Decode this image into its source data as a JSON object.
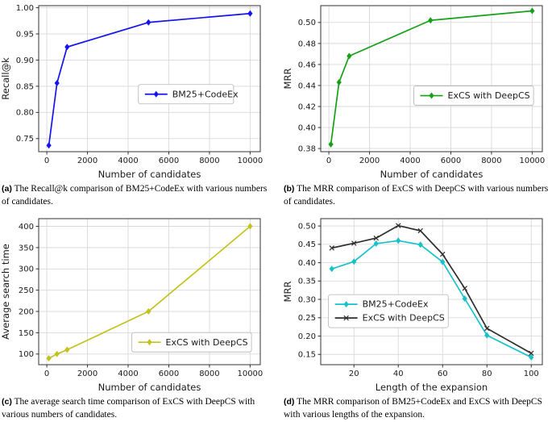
{
  "theme": {
    "background": "#ffffff",
    "grid_color": "#d9d9d9",
    "frame_color": "#333333",
    "text_color": "#1a1a1a",
    "legend_border_color": "#b3b3b3",
    "series_colors": {
      "blue": "#1414f0",
      "green": "#15a015",
      "yellow": "#c2c21d",
      "cyan": "#18c2c9",
      "black": "#2e2e2e"
    }
  },
  "chart_data": [
    {
      "name": "recall-vs-candidates",
      "type": "line",
      "title": "",
      "xlabel": "Number of candidates",
      "ylabel": "Recall@k",
      "xlim": [
        -400,
        10500
      ],
      "ylim": [
        0.725,
        1.004
      ],
      "grid": true,
      "xticks": [
        0,
        2000,
        4000,
        6000,
        8000,
        10000
      ],
      "xtick_labels": [
        "0",
        "2000",
        "4000",
        "6000",
        "8000",
        "10000"
      ],
      "yticks": [
        0.75,
        0.8,
        0.85,
        0.9,
        0.95,
        1.0
      ],
      "ytick_labels": [
        "0.75",
        "0.80",
        "0.85",
        "0.90",
        "0.95",
        "1.00"
      ],
      "legend_position": {
        "fx": 0.45,
        "fy": 0.54
      },
      "series": [
        {
          "name": "BM25+CodeEx",
          "color": "#1414f0",
          "marker": "diamond",
          "x": [
            100,
            500,
            1000,
            5000,
            10000
          ],
          "y": [
            0.737,
            0.856,
            0.925,
            0.972,
            0.989
          ]
        }
      ]
    },
    {
      "name": "mrr-vs-candidates",
      "type": "line",
      "title": "",
      "xlabel": "Number of candidates",
      "ylabel": "MRR",
      "xlim": [
        -400,
        10500
      ],
      "ylim": [
        0.377,
        0.516
      ],
      "grid": true,
      "xticks": [
        0,
        2000,
        4000,
        6000,
        8000,
        10000
      ],
      "xtick_labels": [
        "0",
        "2000",
        "4000",
        "6000",
        "8000",
        "10000"
      ],
      "yticks": [
        0.38,
        0.4,
        0.42,
        0.44,
        0.46,
        0.48,
        0.5
      ],
      "ytick_labels": [
        "0.38",
        "0.40",
        "0.42",
        "0.44",
        "0.46",
        "0.48",
        "0.50"
      ],
      "legend_position": {
        "fx": 0.42,
        "fy": 0.55
      },
      "series": [
        {
          "name": "ExCS with DeepCS",
          "color": "#15a015",
          "marker": "diamond",
          "x": [
            100,
            500,
            1000,
            5000,
            10000
          ],
          "y": [
            0.384,
            0.443,
            0.468,
            0.502,
            0.511
          ]
        }
      ]
    },
    {
      "name": "search-time-vs-candidates",
      "type": "line",
      "title": "",
      "xlabel": "Number of candidates",
      "ylabel": "Average search time",
      "xlim": [
        -400,
        10500
      ],
      "ylim": [
        75,
        418
      ],
      "grid": true,
      "xticks": [
        0,
        2000,
        4000,
        6000,
        8000,
        10000
      ],
      "xtick_labels": [
        "0",
        "2000",
        "4000",
        "6000",
        "8000",
        "10000"
      ],
      "yticks": [
        100,
        150,
        200,
        250,
        300,
        350,
        400
      ],
      "ytick_labels": [
        "100",
        "150",
        "200",
        "250",
        "300",
        "350",
        "400"
      ],
      "legend_position": {
        "fx": 0.42,
        "fy": 0.78
      },
      "series": [
        {
          "name": "ExCS with DeepCS",
          "color": "#c2c21d",
          "marker": "diamond",
          "x": [
            100,
            500,
            1000,
            5000,
            10000
          ],
          "y": [
            90,
            100,
            110,
            200,
            400
          ]
        }
      ]
    },
    {
      "name": "mrr-vs-expansion-length",
      "type": "line",
      "title": "",
      "xlabel": "Length of the expansion",
      "ylabel": "MRR",
      "xlim": [
        5,
        105
      ],
      "ylim": [
        0.122,
        0.52
      ],
      "grid": true,
      "xticks": [
        20,
        40,
        60,
        80,
        100
      ],
      "xtick_labels": [
        "20",
        "40",
        "60",
        "80",
        "100"
      ],
      "yticks": [
        0.15,
        0.2,
        0.25,
        0.3,
        0.35,
        0.4,
        0.45,
        0.5
      ],
      "ytick_labels": [
        "0.15",
        "0.20",
        "0.25",
        "0.30",
        "0.35",
        "0.40",
        "0.45",
        "0.50"
      ],
      "legend_position": {
        "fx": 0.035,
        "fy": 0.52
      },
      "series": [
        {
          "name": "BM25+CodeEx",
          "color": "#18c2c9",
          "marker": "diamond",
          "x": [
            10,
            20,
            30,
            40,
            50,
            60,
            70,
            80,
            100
          ],
          "y": [
            0.383,
            0.403,
            0.452,
            0.46,
            0.449,
            0.402,
            0.302,
            0.202,
            0.142
          ]
        },
        {
          "name": "ExCS with DeepCS",
          "color": "#2e2e2e",
          "marker": "x",
          "x": [
            10,
            20,
            30,
            40,
            50,
            60,
            70,
            80,
            100
          ],
          "y": [
            0.44,
            0.453,
            0.467,
            0.501,
            0.487,
            0.423,
            0.33,
            0.221,
            0.153
          ]
        }
      ]
    }
  ],
  "captions": [
    {
      "tag": "(a)",
      "text": "The Recall@k comparison of BM25+CodeEx with various numbers of candidates."
    },
    {
      "tag": "(b)",
      "text": "The MRR comparison of ExCS with DeepCS with various numbers of candidates."
    },
    {
      "tag": "(c)",
      "text": "The average search time comparison of ExCS with DeepCS with various numbers of candidates."
    },
    {
      "tag": "(d)",
      "text": "The MRR comparison of BM25+CodeEx and ExCS with DeepCS with various lengths of the expansion."
    }
  ]
}
